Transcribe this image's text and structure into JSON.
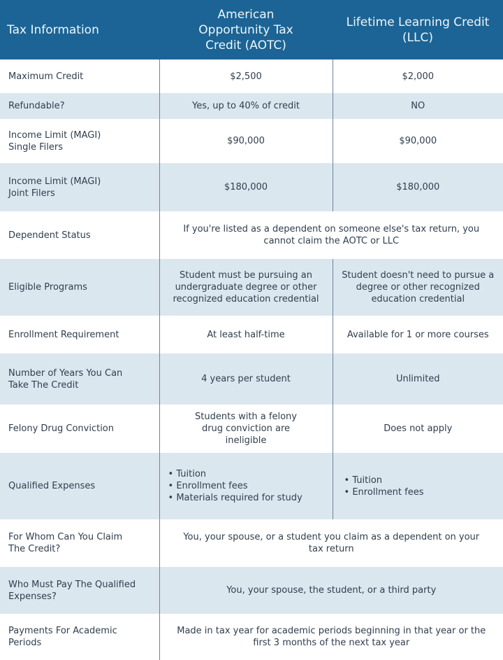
{
  "header": {
    "col1": "Tax Information",
    "col2": "American Opportunity Tax Credit (AOTC)",
    "col3": "Lifetime Learning Credit (LLC)"
  },
  "rows": [
    {
      "label": "Maximum Credit",
      "aotc": "$2,500",
      "llc": "$2,000"
    },
    {
      "label": "Refundable?",
      "aotc": "Yes, up to 40% of credit",
      "llc": "NO"
    },
    {
      "label": "Income Limit (MAGI) Single Filers",
      "aotc": "$90,000",
      "llc": "$90,000"
    },
    {
      "label": "Income Limit (MAGI) Joint Filers",
      "aotc": "$180,000",
      "llc": "$180,000"
    },
    {
      "label": "Dependent Status",
      "both": "If you're listed as a dependent on someone else's tax return, you cannot claim the AOTC or LLC"
    },
    {
      "label": "Eligible Programs",
      "aotc": "Student must be pursuing an undergraduate degree or other recognized education credential",
      "llc": "Student doesn't need to pursue a degree or other recognized education credential"
    },
    {
      "label": "Enrollment Requirement",
      "aotc": "At least half-time",
      "llc": "Available for 1 or more courses"
    },
    {
      "label": "Number of Years You Can Take The Credit",
      "aotc": "4 years per student",
      "llc": "Unlimited"
    },
    {
      "label": "Felony Drug Conviction",
      "aotc": "Students with a felony drug conviction are ineligible",
      "llc": "Does not apply"
    },
    {
      "label": "Qualified Expenses",
      "aotc_list": [
        "Tuition",
        "Enrollment fees",
        "Materials required for study"
      ],
      "llc_list": [
        "Tuition",
        "Enrollment fees"
      ]
    },
    {
      "label": "For Whom Can You Claim The Credit?",
      "both": "You, your spouse, or a student you claim as a dependent on your tax return"
    },
    {
      "label": "Who Must Pay The Qualified Expenses?",
      "both": "You, your spouse, the student, or a third party"
    },
    {
      "label": "Payments For Academic Periods",
      "both": "Made in tax year for academic periods beginning in that year or the first 3 months of the next tax year"
    }
  ],
  "colors": {
    "header": "#1c6495",
    "alt_row": "#dbe7ef",
    "text": "#2f3e4e"
  }
}
